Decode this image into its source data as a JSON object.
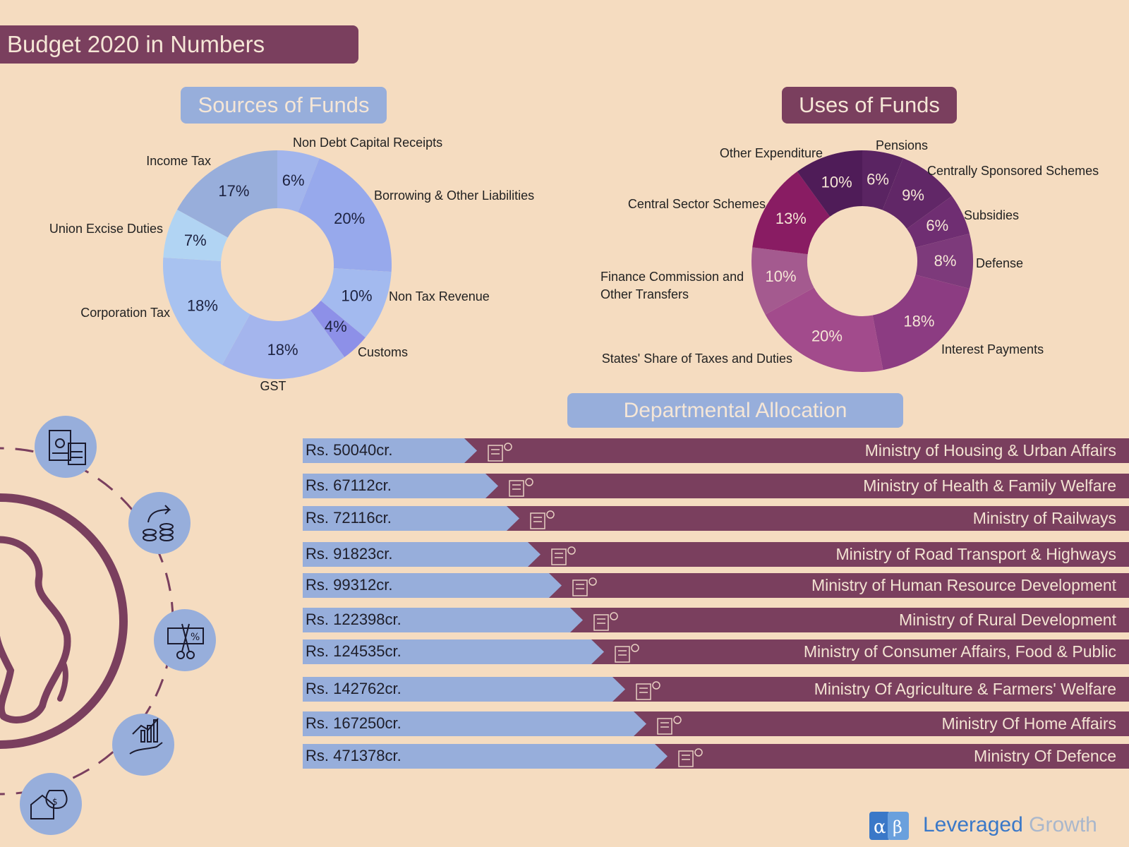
{
  "header": {
    "title": "Budget 2020 in Numbers"
  },
  "sections": {
    "sources_title": "Sources of Funds",
    "uses_title": "Uses of Funds",
    "departments_title": "Departmental Allocation"
  },
  "colors": {
    "brand": "#7a3f5e",
    "accent": "#97aedb",
    "background": "#f5dcc0"
  },
  "chart_data": [
    {
      "type": "pie",
      "title": "Sources of Funds",
      "labels": [
        "Non Debt Capital Receipts",
        "Borrowing & Other Liabilities",
        "Non Tax Revenue",
        "Customs",
        "GST",
        "Corporation Tax",
        "Union Excise Duties",
        "Income Tax"
      ],
      "values": [
        6,
        20,
        10,
        4,
        18,
        18,
        7,
        17
      ],
      "value_labels": [
        "6%",
        "20%",
        "10%",
        "4%",
        "18%",
        "18%",
        "7%",
        "17%"
      ],
      "colors": [
        "#a2b5ec",
        "#97a9ec",
        "#a3baef",
        "#8d90e8",
        "#a4b5ed",
        "#a8c2f0",
        "#b1d4f3",
        "#98aedb"
      ],
      "donut": true
    },
    {
      "type": "pie",
      "title": "Uses of Funds",
      "labels": [
        "Pensions",
        "Centrally Sponsored Schemes",
        "Subsidies",
        "Defense",
        "Interest Payments",
        "States' Share of Taxes and Duties",
        "Finance Commission and Other Transfers",
        "Central Sector Schemes",
        "Other Expenditure"
      ],
      "values": [
        6,
        9,
        6,
        8,
        18,
        20,
        10,
        13,
        10
      ],
      "value_labels": [
        "6%",
        "9%",
        "6%",
        "8%",
        "18%",
        "20%",
        "10%",
        "13%",
        "10%"
      ],
      "colors": [
        "#5a2462",
        "#612767",
        "#6f2e72",
        "#7d3a7b",
        "#8c3c82",
        "#a24b8c",
        "#a45a8f",
        "#891c63",
        "#4f1c58"
      ],
      "donut": true
    },
    {
      "type": "bar",
      "title": "Departmental Allocation",
      "orientation": "horizontal",
      "categories": [
        "Ministry of Housing & Urban Affairs",
        "Ministry of Health & Family Welfare",
        "Ministry of Railways",
        "Ministry of Road Transport & Highways",
        "Ministry of Human Resource Development",
        "Ministry of Rural Development",
        "Ministry of Consumer Affairs, Food & Public",
        "Ministry Of Agriculture & Farmers' Welfare",
        "Ministry Of Home Affairs",
        "Ministry Of Defence"
      ],
      "values": [
        50040,
        67112,
        72116,
        91823,
        99312,
        122398,
        124535,
        142762,
        167250,
        471378
      ],
      "value_labels": [
        "Rs. 50040cr.",
        "Rs. 67112cr.",
        "Rs. 72116cr.",
        "Rs. 91823cr.",
        "Rs. 99312cr.",
        "Rs. 122398cr.",
        "Rs. 124535cr.",
        "Rs. 142762cr.",
        "Rs. 167250cr.",
        "Rs. 471378cr."
      ],
      "icons": [
        "building-icon",
        "heart-hands-icon",
        "train-icon",
        "road-icon",
        "school-icon",
        "farm-icon",
        "shopping-icon",
        "farmer-icon",
        "crowd-icon",
        "soldier-icon"
      ],
      "colors": {
        "amount": "#97aedb",
        "bar": "#7a3f5e"
      }
    }
  ],
  "decor": {
    "icons": [
      "calculator-icon",
      "coins-growth-icon",
      "tax-cut-icon",
      "hand-growth-icon",
      "money-bag-house-icon"
    ],
    "globe": "globe-icon"
  },
  "brand": {
    "name_part1": "Leveraged",
    "name_part2": "Growth",
    "logo": "alpha-beta-logo-icon"
  }
}
